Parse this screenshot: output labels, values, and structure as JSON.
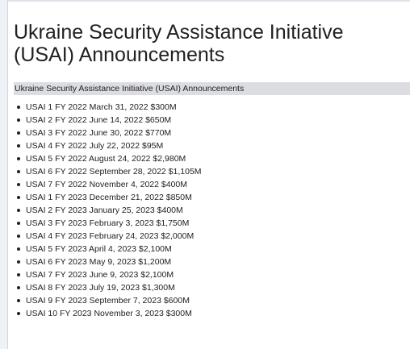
{
  "page": {
    "title": "Ukraine Security Assistance Initiative (USAI) Announcements",
    "section_heading": "Ukraine Security Assistance Initiative (USAI) Announcements"
  },
  "announcements": [
    "USAI 1 FY 2022 March 31, 2022 $300M",
    "USAI 2 FY 2022 June 14, 2022 $650M",
    "USAI 3 FY 2022 June 30, 2022 $770M",
    "USAI 4 FY 2022 July 22, 2022 $95M",
    "USAI 5 FY 2022 August 24, 2022 $2,980M",
    "USAI 6 FY 2022 September 28, 2022 $1,105M",
    "USAI 7 FY 2022 November 4, 2022 $400M",
    "USAI 1 FY 2023 December 21, 2022 $850M",
    "USAI 2 FY 2023 January 25, 2023 $400M",
    "USAI 3 FY 2023 February 3, 2023 $1,750M",
    "USAI 4 FY 2023 February 24, 2023 $2,000M",
    "USAI 5 FY 2023 April 4, 2023 $2,100M",
    "USAI 6 FY 2023 May 9, 2023 $1,200M",
    "USAI 7 FY 2023 June 9, 2023 $2,100M",
    "USAI 8 FY 2023 July 19, 2023 $1,300M",
    "USAI 9 FY 2023 September 7, 2023 $600M",
    "USAI 10 FY 2023 November 3, 2023 $300M"
  ]
}
